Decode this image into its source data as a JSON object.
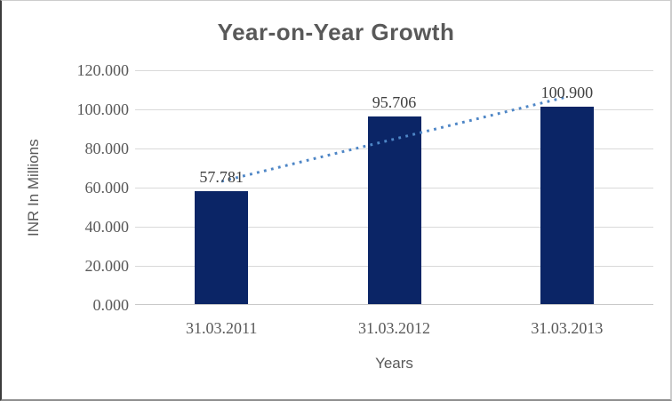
{
  "chart_data": {
    "type": "bar",
    "title": "Year-on-Year Growth",
    "xlabel": "Years",
    "ylabel": "INR In Millions",
    "categories": [
      "31.03.2011",
      "31.03.2012",
      "31.03.2013"
    ],
    "values": [
      57.781,
      95.706,
      100.9
    ],
    "data_labels": [
      "57.781",
      "95.706",
      "100.900"
    ],
    "ylim": [
      0,
      120
    ],
    "ytick_step": 20,
    "ytick_labels": [
      "120.000",
      "100.000",
      "80.000",
      "60.000",
      "40.000",
      "20.000",
      "0.000"
    ],
    "grid": true,
    "legend": "none",
    "colors": {
      "bar": "#0b2566",
      "gridline": "#d9d9d9",
      "axis_line": "#c9c9c9",
      "tick_text": "#595959",
      "data_label_text": "#3f3f3f",
      "title_text": "#595959",
      "trendline": "#4e86c6"
    },
    "trendline": {
      "type": "linear",
      "style": "dotted",
      "start_value": 63.2,
      "end_value": 106.4
    }
  }
}
